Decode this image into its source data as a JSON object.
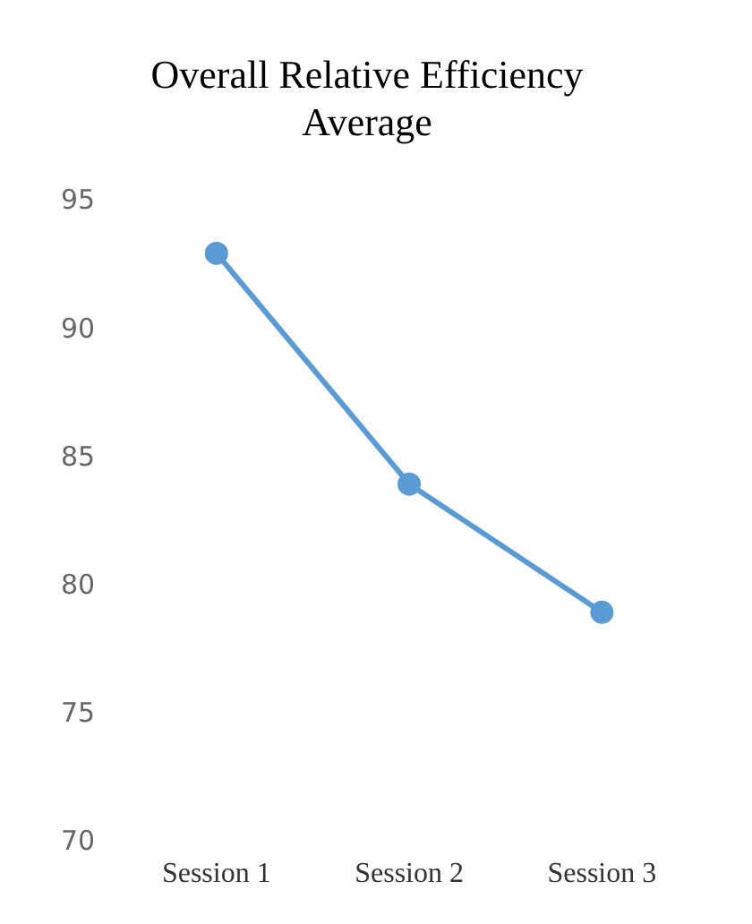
{
  "chart_data": {
    "type": "line",
    "title": "Overall Relative Efficiency Average",
    "categories": [
      "Session 1",
      "Session 2",
      "Session 3"
    ],
    "series": [
      {
        "color": "#5b9bd5",
        "values": [
          93,
          84,
          79
        ]
      }
    ],
    "ylim": [
      70,
      95
    ],
    "yticks": [
      70,
      75,
      80,
      85,
      90,
      95
    ],
    "grid": false,
    "legend": false,
    "marker": "circle",
    "line_style": "solid"
  }
}
